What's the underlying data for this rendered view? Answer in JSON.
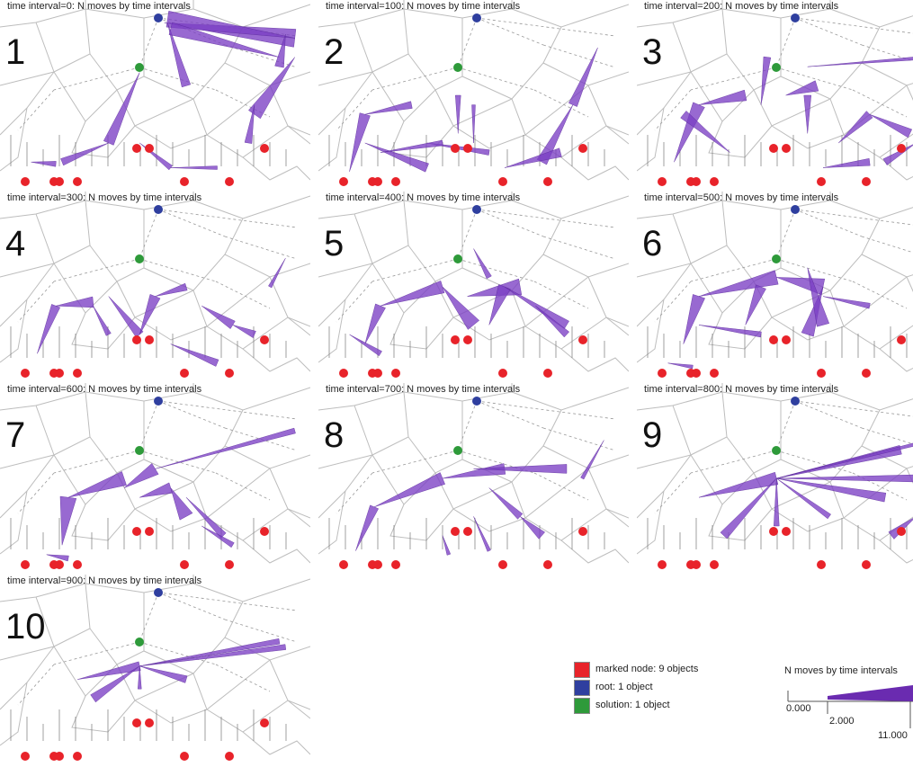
{
  "panels": [
    {
      "number": "1",
      "title": "time interval=0: N moves by time intervals",
      "arrows": [
        [
          0.53,
          0.12,
          0.95,
          0.2,
          10
        ],
        [
          0.95,
          0.2,
          0.54,
          0.1,
          9
        ],
        [
          0.54,
          0.12,
          0.6,
          0.45,
          5
        ],
        [
          0.95,
          0.3,
          0.82,
          0.6,
          8
        ],
        [
          0.9,
          0.3,
          0.55,
          0.15,
          7
        ],
        [
          0.45,
          0.38,
          0.35,
          0.75,
          6
        ],
        [
          0.35,
          0.75,
          0.2,
          0.85,
          4
        ],
        [
          0.1,
          0.85,
          0.18,
          0.86,
          3
        ],
        [
          0.45,
          0.75,
          0.55,
          0.88,
          3
        ],
        [
          0.55,
          0.88,
          0.7,
          0.88,
          2
        ],
        [
          0.82,
          0.55,
          0.8,
          0.75,
          4
        ],
        [
          0.92,
          0.18,
          0.9,
          0.35,
          5
        ]
      ]
    },
    {
      "number": "2",
      "title": "time interval=100: N moves by time intervals",
      "arrows": [
        [
          0.1,
          0.9,
          0.15,
          0.6,
          6
        ],
        [
          0.15,
          0.6,
          0.3,
          0.55,
          4
        ],
        [
          0.15,
          0.75,
          0.35,
          0.88,
          5
        ],
        [
          0.35,
          0.75,
          0.55,
          0.8,
          3
        ],
        [
          0.45,
          0.7,
          0.45,
          0.5,
          3
        ],
        [
          0.9,
          0.25,
          0.82,
          0.55,
          5
        ],
        [
          0.82,
          0.55,
          0.72,
          0.85,
          6
        ],
        [
          0.6,
          0.88,
          0.78,
          0.8,
          5
        ],
        [
          0.5,
          0.75,
          0.5,
          0.55,
          2
        ],
        [
          0.2,
          0.8,
          0.4,
          0.75,
          3
        ]
      ]
    },
    {
      "number": "3",
      "title": "time interval=200: N moves by time intervals",
      "arrows": [
        [
          0.12,
          0.85,
          0.2,
          0.55,
          7
        ],
        [
          0.2,
          0.55,
          0.35,
          0.5,
          6
        ],
        [
          0.3,
          0.8,
          0.15,
          0.6,
          5
        ],
        [
          0.4,
          0.55,
          0.42,
          0.3,
          4
        ],
        [
          0.48,
          0.5,
          0.58,
          0.45,
          6
        ],
        [
          0.55,
          0.7,
          0.55,
          0.5,
          4
        ],
        [
          0.65,
          0.75,
          0.75,
          0.6,
          5
        ],
        [
          0.75,
          0.6,
          0.88,
          0.7,
          5
        ],
        [
          0.6,
          0.88,
          0.75,
          0.85,
          4
        ],
        [
          0.9,
          0.75,
          0.8,
          0.85,
          4
        ],
        [
          0.55,
          0.35,
          0.95,
          0.3,
          2
        ]
      ]
    },
    {
      "number": "4",
      "title": "time interval=300: N moves by time intervals",
      "arrows": [
        [
          0.12,
          0.85,
          0.18,
          0.6,
          5
        ],
        [
          0.18,
          0.6,
          0.3,
          0.58,
          6
        ],
        [
          0.3,
          0.6,
          0.35,
          0.75,
          3
        ],
        [
          0.35,
          0.55,
          0.45,
          0.75,
          5
        ],
        [
          0.45,
          0.75,
          0.5,
          0.55,
          6
        ],
        [
          0.5,
          0.55,
          0.6,
          0.5,
          4
        ],
        [
          0.55,
          0.8,
          0.7,
          0.9,
          4
        ],
        [
          0.65,
          0.6,
          0.75,
          0.7,
          5
        ],
        [
          0.75,
          0.7,
          0.82,
          0.75,
          4
        ],
        [
          0.92,
          0.35,
          0.87,
          0.5,
          2
        ]
      ]
    },
    {
      "number": "5",
      "title": "time interval=400: N moves by time intervals",
      "arrows": [
        [
          0.15,
          0.8,
          0.2,
          0.6,
          6
        ],
        [
          0.2,
          0.6,
          0.4,
          0.5,
          7
        ],
        [
          0.4,
          0.5,
          0.5,
          0.7,
          8
        ],
        [
          0.48,
          0.55,
          0.65,
          0.5,
          9
        ],
        [
          0.55,
          0.7,
          0.6,
          0.5,
          7
        ],
        [
          0.6,
          0.5,
          0.8,
          0.7,
          5
        ],
        [
          0.7,
          0.6,
          0.8,
          0.75,
          4
        ],
        [
          0.1,
          0.75,
          0.2,
          0.85,
          3
        ],
        [
          0.5,
          0.3,
          0.55,
          0.45,
          3
        ]
      ]
    },
    {
      "number": "6",
      "title": "time interval=500: N moves by time intervals",
      "arrows": [
        [
          0.15,
          0.8,
          0.2,
          0.55,
          7
        ],
        [
          0.2,
          0.55,
          0.45,
          0.45,
          8
        ],
        [
          0.45,
          0.45,
          0.6,
          0.5,
          9
        ],
        [
          0.6,
          0.5,
          0.55,
          0.75,
          7
        ],
        [
          0.35,
          0.7,
          0.4,
          0.5,
          6
        ],
        [
          0.55,
          0.4,
          0.6,
          0.7,
          7
        ],
        [
          0.2,
          0.7,
          0.4,
          0.75,
          3
        ],
        [
          0.6,
          0.55,
          0.75,
          0.6,
          3
        ],
        [
          0.1,
          0.9,
          0.18,
          0.92,
          2
        ]
      ]
    },
    {
      "number": "7",
      "title": "time interval=600: N moves by time intervals",
      "arrows": [
        [
          0.2,
          0.85,
          0.22,
          0.6,
          9
        ],
        [
          0.22,
          0.6,
          0.4,
          0.5,
          8
        ],
        [
          0.4,
          0.55,
          0.5,
          0.45,
          7
        ],
        [
          0.45,
          0.6,
          0.55,
          0.55,
          6
        ],
        [
          0.55,
          0.55,
          0.6,
          0.7,
          8
        ],
        [
          0.6,
          0.6,
          0.72,
          0.8,
          4
        ],
        [
          0.15,
          0.9,
          0.22,
          0.92,
          3
        ],
        [
          0.5,
          0.45,
          0.95,
          0.25,
          3
        ],
        [
          0.65,
          0.75,
          0.75,
          0.85,
          3
        ]
      ]
    },
    {
      "number": "8",
      "title": "time interval=700: N moves by time intervals",
      "arrows": [
        [
          0.12,
          0.88,
          0.18,
          0.65,
          5
        ],
        [
          0.18,
          0.65,
          0.4,
          0.5,
          7
        ],
        [
          0.4,
          0.5,
          0.6,
          0.45,
          6
        ],
        [
          0.5,
          0.45,
          0.8,
          0.45,
          5
        ],
        [
          0.55,
          0.55,
          0.65,
          0.7,
          4
        ],
        [
          0.65,
          0.7,
          0.72,
          0.8,
          5
        ],
        [
          0.5,
          0.7,
          0.55,
          0.88,
          2
        ],
        [
          0.92,
          0.3,
          0.85,
          0.5,
          2
        ],
        [
          0.4,
          0.8,
          0.42,
          0.9,
          2
        ]
      ]
    },
    {
      "number": "9",
      "title": "time interval=800: N moves by time intervals",
      "arrows": [
        [
          0.2,
          0.6,
          0.45,
          0.5,
          7
        ],
        [
          0.45,
          0.5,
          0.28,
          0.8,
          5
        ],
        [
          0.45,
          0.5,
          0.85,
          0.35,
          5
        ],
        [
          0.45,
          0.5,
          0.8,
          0.6,
          5
        ],
        [
          0.45,
          0.5,
          0.9,
          0.5,
          4
        ],
        [
          0.45,
          0.5,
          0.62,
          0.7,
          3
        ],
        [
          0.9,
          0.7,
          0.82,
          0.8,
          5
        ],
        [
          0.45,
          0.5,
          0.95,
          0.3,
          2
        ],
        [
          0.45,
          0.5,
          0.45,
          0.75,
          3
        ]
      ]
    },
    {
      "number": "10",
      "title": "time interval=900: N moves by time intervals",
      "arrows": [
        [
          0.25,
          0.55,
          0.45,
          0.48,
          5
        ],
        [
          0.45,
          0.48,
          0.3,
          0.65,
          5
        ],
        [
          0.45,
          0.48,
          0.9,
          0.35,
          3
        ],
        [
          0.45,
          0.48,
          0.92,
          0.38,
          3
        ],
        [
          0.45,
          0.48,
          0.6,
          0.55,
          4
        ],
        [
          0.45,
          0.48,
          0.45,
          0.6,
          2
        ]
      ]
    }
  ],
  "legend": {
    "marked_label": "marked node: 9 objects",
    "marked_color": "#e8232a",
    "root_label": "root: 1 object",
    "root_color": "#2f3f9f",
    "solution_label": "solution: 1 object",
    "solution_color": "#2e9a3a"
  },
  "scale": {
    "title": "N moves by time intervals",
    "min_label": "0.000",
    "mid_label": "2.000",
    "max_label": "11.000",
    "color": "#6a2bb0"
  },
  "arrow_color": "#7b3fc4"
}
